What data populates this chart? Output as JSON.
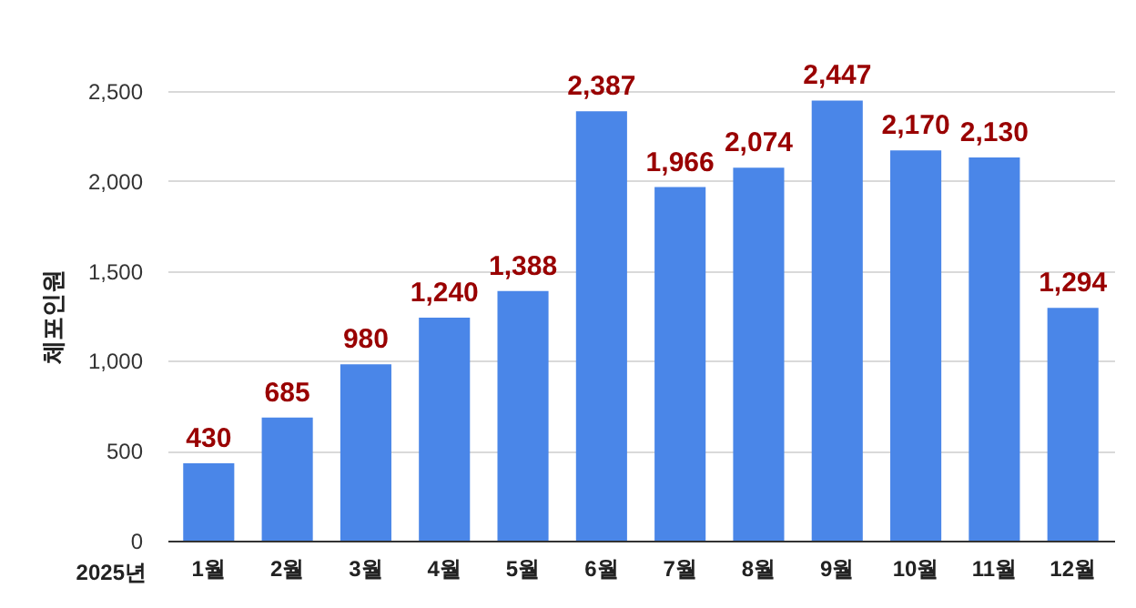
{
  "chart_data": {
    "type": "bar",
    "xlabel": "2025년",
    "ylabel": "체포인원",
    "categories": [
      "1월",
      "2월",
      "3월",
      "4월",
      "5월",
      "6월",
      "7월",
      "8월",
      "9월",
      "10월",
      "11월",
      "12월"
    ],
    "values": [
      430,
      685,
      980,
      1240,
      1388,
      2387,
      1966,
      2074,
      2447,
      2170,
      2130,
      1294
    ],
    "value_labels": [
      "430",
      "685",
      "980",
      "1,240",
      "1,388",
      "2,387",
      "1,966",
      "2,074",
      "2,447",
      "2,170",
      "2,130",
      "1,294"
    ],
    "color": "#4a86e8",
    "ylim": [
      0,
      2500
    ],
    "yticks": [
      0,
      {
        "value": 500,
        "label": "500"
      },
      {
        "value": 1000,
        "label": "1,000"
      },
      {
        "value": 1500,
        "label": "1,500"
      },
      {
        "value": 2000,
        "label": "2,000"
      },
      {
        "value": 2500,
        "label": "2,500"
      }
    ],
    "grid": "y"
  }
}
